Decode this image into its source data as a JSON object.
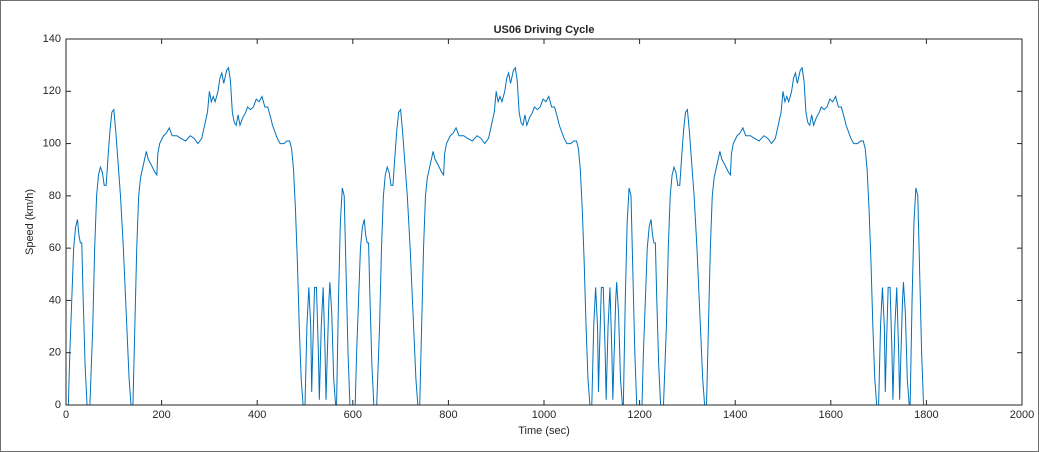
{
  "chart_data": {
    "type": "line",
    "title": "US06 Driving Cycle",
    "x_label": "Time (sec)",
    "y_label": "Speed (km/h)",
    "xlim": [
      0,
      2000
    ],
    "xticks": [
      0,
      200,
      400,
      600,
      800,
      1000,
      1200,
      1400,
      1600,
      1800,
      2000
    ],
    "ylim": [
      0,
      140
    ],
    "yticks": [
      0,
      20,
      40,
      60,
      80,
      100,
      120,
      140
    ],
    "series": [
      {
        "color": "#0072bd",
        "x": [
          0,
          5,
          8,
          12,
          16,
          20,
          24,
          27,
          30,
          33,
          36,
          40,
          44,
          50,
          56,
          60,
          64,
          68,
          72,
          76,
          80,
          84,
          88,
          92,
          96,
          100,
          104,
          108,
          114,
          120,
          126,
          132,
          136,
          140,
          144,
          148,
          152,
          156,
          162,
          168,
          172,
          178,
          186,
          190,
          192,
          196,
          204,
          210,
          216,
          222,
          232,
          240,
          250,
          260,
          268,
          276,
          284,
          290,
          296,
          300,
          304,
          308,
          312,
          318,
          322,
          326,
          330,
          336,
          340,
          344,
          348,
          352,
          356,
          360,
          364,
          370,
          376,
          380,
          386,
          392,
          398,
          404,
          410,
          416,
          422,
          428,
          432,
          438,
          442,
          448,
          456,
          462,
          468,
          472,
          476,
          480,
          484,
          488,
          492,
          496,
          500,
          504,
          508,
          512,
          514,
          516,
          520,
          524,
          528,
          530,
          534,
          538,
          542,
          544,
          546,
          550,
          552,
          556,
          560,
          564,
          566,
          570,
          574,
          578,
          582,
          586,
          590,
          594,
          600,
          605,
          608,
          612,
          616,
          620,
          624,
          627,
          630,
          633,
          636,
          640,
          644,
          650,
          656,
          660,
          664,
          668,
          672,
          676,
          680,
          684,
          688,
          692,
          696,
          700,
          704,
          708,
          714,
          720,
          726,
          732,
          736,
          740,
          744,
          748,
          752,
          756,
          762,
          768,
          772,
          778,
          786,
          790,
          792,
          796,
          804,
          810,
          816,
          822,
          832,
          840,
          850,
          860,
          868,
          876,
          884,
          890,
          896,
          900,
          904,
          908,
          912,
          918,
          922,
          926,
          930,
          936,
          940,
          944,
          948,
          952,
          956,
          960,
          964,
          970,
          976,
          980,
          986,
          992,
          998,
          1004,
          1010,
          1016,
          1022,
          1028,
          1032,
          1038,
          1042,
          1048,
          1056,
          1062,
          1068,
          1072,
          1076,
          1080,
          1084,
          1088,
          1092,
          1096,
          1100,
          1104,
          1108,
          1112,
          1114,
          1116,
          1120,
          1124,
          1128,
          1130,
          1134,
          1138,
          1142,
          1144,
          1146,
          1150,
          1152,
          1156,
          1160,
          1164,
          1166,
          1170,
          1174,
          1178,
          1182,
          1186,
          1190,
          1194,
          1200,
          1205,
          1208,
          1212,
          1216,
          1220,
          1224,
          1227,
          1230,
          1233,
          1236,
          1240,
          1244,
          1250,
          1256,
          1260,
          1264,
          1268,
          1272,
          1276,
          1280,
          1284,
          1288,
          1292,
          1296,
          1300,
          1304,
          1308,
          1314,
          1320,
          1326,
          1332,
          1336,
          1340,
          1344,
          1348,
          1352,
          1356,
          1362,
          1368,
          1372,
          1378,
          1386,
          1390,
          1392,
          1396,
          1404,
          1410,
          1416,
          1422,
          1432,
          1440,
          1450,
          1460,
          1468,
          1476,
          1484,
          1490,
          1496,
          1500,
          1504,
          1508,
          1512,
          1518,
          1522,
          1526,
          1530,
          1536,
          1540,
          1544,
          1548,
          1552,
          1556,
          1560,
          1564,
          1570,
          1576,
          1580,
          1586,
          1592,
          1598,
          1604,
          1610,
          1616,
          1622,
          1628,
          1632,
          1638,
          1642,
          1648,
          1656,
          1662,
          1668,
          1672,
          1676,
          1680,
          1684,
          1688,
          1692,
          1696,
          1700,
          1704,
          1708,
          1712,
          1714,
          1716,
          1720,
          1724,
          1728,
          1730,
          1734,
          1738,
          1742,
          1744,
          1746,
          1750,
          1752,
          1756,
          1760,
          1764,
          1766,
          1770,
          1774,
          1778,
          1782,
          1786,
          1790,
          1794,
          1800
        ],
        "values": [
          0,
          0,
          20,
          40,
          60,
          68,
          71,
          65,
          62,
          62,
          40,
          15,
          0,
          0,
          30,
          60,
          80,
          88,
          91,
          89,
          84,
          84,
          95,
          105,
          112,
          113,
          105,
          95,
          80,
          60,
          35,
          10,
          0,
          0,
          30,
          60,
          80,
          87,
          92,
          97,
          94,
          92,
          89,
          88,
          96,
          100,
          103,
          104,
          106,
          103,
          103,
          102,
          101,
          103,
          102,
          100,
          102,
          107,
          112,
          120,
          116,
          118,
          116,
          120,
          125,
          127,
          123,
          128,
          129,
          124,
          112,
          108,
          107,
          111,
          107,
          110,
          112,
          114,
          113,
          114,
          117,
          116,
          118,
          114,
          114,
          110,
          107,
          104,
          102,
          100,
          100,
          101,
          101,
          98,
          90,
          75,
          55,
          30,
          10,
          0,
          0,
          30,
          45,
          30,
          5,
          20,
          45,
          45,
          20,
          2,
          30,
          45,
          20,
          2,
          15,
          40,
          47,
          35,
          10,
          0,
          0,
          40,
          70,
          83,
          80,
          50,
          20,
          0,
          0,
          0,
          20,
          40,
          60,
          68,
          71,
          65,
          62,
          62,
          40,
          15,
          0,
          0,
          30,
          60,
          80,
          88,
          91,
          89,
          84,
          84,
          95,
          105,
          112,
          113,
          105,
          95,
          80,
          60,
          35,
          10,
          0,
          0,
          30,
          60,
          80,
          87,
          92,
          97,
          94,
          92,
          89,
          88,
          96,
          100,
          103,
          104,
          106,
          103,
          103,
          102,
          101,
          103,
          102,
          100,
          102,
          107,
          112,
          120,
          116,
          118,
          116,
          120,
          125,
          127,
          123,
          128,
          129,
          124,
          112,
          108,
          107,
          111,
          107,
          110,
          112,
          114,
          113,
          114,
          117,
          116,
          118,
          114,
          114,
          110,
          107,
          104,
          102,
          100,
          100,
          101,
          101,
          98,
          90,
          75,
          55,
          30,
          10,
          0,
          0,
          30,
          45,
          30,
          5,
          20,
          45,
          45,
          20,
          2,
          30,
          45,
          20,
          2,
          15,
          40,
          47,
          35,
          10,
          0,
          0,
          40,
          70,
          83,
          80,
          50,
          20,
          0,
          0,
          0,
          20,
          40,
          60,
          68,
          71,
          65,
          62,
          62,
          40,
          15,
          0,
          0,
          30,
          60,
          80,
          88,
          91,
          89,
          84,
          84,
          95,
          105,
          112,
          113,
          105,
          95,
          80,
          60,
          35,
          10,
          0,
          0,
          30,
          60,
          80,
          87,
          92,
          97,
          94,
          92,
          89,
          88,
          96,
          100,
          103,
          104,
          106,
          103,
          103,
          102,
          101,
          103,
          102,
          100,
          102,
          107,
          112,
          120,
          116,
          118,
          116,
          120,
          125,
          127,
          123,
          128,
          129,
          124,
          112,
          108,
          107,
          111,
          107,
          110,
          112,
          114,
          113,
          114,
          117,
          116,
          118,
          114,
          114,
          110,
          107,
          104,
          102,
          100,
          100,
          101,
          101,
          98,
          90,
          75,
          55,
          30,
          10,
          0,
          0,
          30,
          45,
          30,
          5,
          20,
          45,
          45,
          20,
          2,
          30,
          45,
          20,
          2,
          15,
          40,
          47,
          35,
          10,
          0,
          0,
          40,
          70,
          83,
          80,
          50,
          20,
          0,
          0
        ]
      }
    ]
  }
}
